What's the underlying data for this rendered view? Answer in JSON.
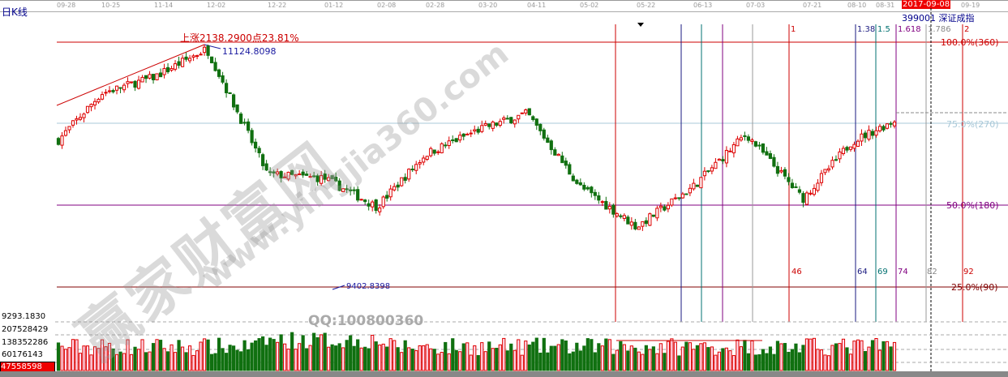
{
  "header": {
    "chart_type_label": "日K线",
    "date_badge": "2017-09-08",
    "security": "399001 深证成指"
  },
  "top_axis_dates": [
    "09-28",
    "10-25",
    "11-14",
    "12-02",
    "12-22",
    "01-12",
    "02-08",
    "02-28",
    "03-20",
    "04-11",
    "05-02",
    "05-22",
    "06-13",
    "07-03",
    "07-21",
    "08-10",
    "08-31",
    "09-19"
  ],
  "annotations": {
    "rise_label": "上涨2138.2900点23.81%",
    "high_label": "11124.8098",
    "low_label": "9402.8398"
  },
  "levels": [
    {
      "label": "100.0%(360)",
      "color": "#cc0000"
    },
    {
      "label": "75.0%(270)",
      "color": "#a8c8d8"
    },
    {
      "label": "50.0%(180)",
      "color": "#800080"
    },
    {
      "label": "25.0%(90)",
      "color": "#800000"
    }
  ],
  "fib_ratios": [
    "1",
    "1.38",
    "1.5",
    "1.618",
    "1.786",
    "2"
  ],
  "time_counts": [
    "46",
    "64",
    "69",
    "74",
    "82",
    "92"
  ],
  "volume_axis": [
    "9293.1830",
    "207528429",
    "138352286",
    "60176143"
  ],
  "volume_current": "47558598",
  "watermark": {
    "brand": "赢家财富网",
    "url": "www.yingjia360.com",
    "qq": "QQ:100800360"
  },
  "colors": {
    "up": "#dd0000",
    "down": "#107010"
  },
  "chart_data": {
    "type": "candlestick",
    "x": [
      "09-28",
      "10-25",
      "11-14",
      "12-02",
      "12-22",
      "01-12",
      "02-08",
      "02-28",
      "03-20",
      "04-11",
      "05-02",
      "05-22",
      "06-13",
      "07-03",
      "07-21",
      "08-10",
      "08-31"
    ],
    "close_approx": [
      10440,
      10782,
      10896,
      11096,
      10212,
      10184,
      9984,
      10355,
      10526,
      10640,
      10127,
      9842,
      10127,
      10497,
      10041,
      10440,
      10611
    ],
    "high": 11124.8098,
    "low": 9402.8398,
    "grid": false
  }
}
